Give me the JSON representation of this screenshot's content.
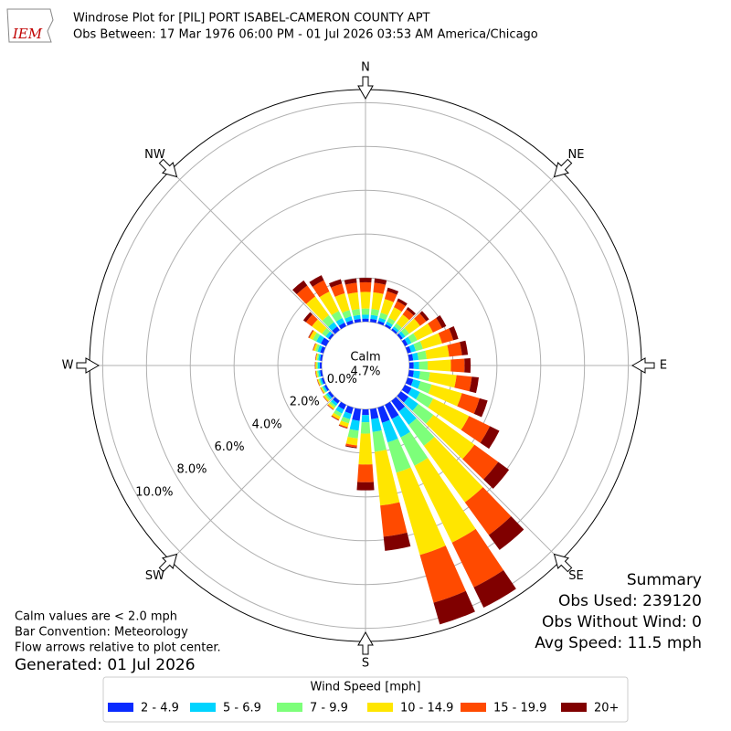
{
  "chart_data": {
    "type": "windrose",
    "title": "Windrose Plot for [PIL] PORT ISABEL-CAMERON COUNTY APT",
    "subtitle": "Obs Between: 17 Mar 1976 06:00 PM - 01 Jul 2026 03:53 AM America/Chicago",
    "logo_text": "IEM",
    "compass": [
      "N",
      "NE",
      "E",
      "SE",
      "S",
      "SW",
      "W",
      "NW"
    ],
    "directions": [
      0,
      10,
      20,
      30,
      40,
      50,
      60,
      70,
      80,
      90,
      100,
      110,
      120,
      130,
      140,
      150,
      160,
      170,
      180,
      190,
      200,
      210,
      220,
      230,
      240,
      250,
      260,
      270,
      280,
      290,
      300,
      310,
      320,
      330,
      340,
      350
    ],
    "rlim": [
      0,
      10.6
    ],
    "rticks": [
      {
        "value": 0,
        "label": "0.0%"
      },
      {
        "value": 2,
        "label": "2.0%"
      },
      {
        "value": 4,
        "label": "4.0%"
      },
      {
        "value": 6,
        "label": "6.0%"
      },
      {
        "value": 8,
        "label": "8.0%"
      },
      {
        "value": 10,
        "label": "10.0%"
      }
    ],
    "calm": {
      "label": "Calm",
      "value": 4.7,
      "value_label": "4.7%"
    },
    "legend_title": "Wind Speed [mph]",
    "series": [
      {
        "name": "2 - 4.9",
        "color": "#0a2bff",
        "values": [
          0.14,
          0.14,
          0.12,
          0.1,
          0.09,
          0.11,
          0.15,
          0.17,
          0.19,
          0.2,
          0.22,
          0.27,
          0.34,
          0.43,
          0.59,
          0.72,
          0.72,
          0.46,
          0.26,
          0.54,
          0.3,
          0.24,
          0.15,
          0.12,
          0.09,
          0.09,
          0.09,
          0.09,
          0.09,
          0.15,
          0.27,
          0.11,
          0.2,
          0.18,
          0.15,
          0.14
        ]
      },
      {
        "name": "5 - 6.9",
        "color": "#00d4ff",
        "values": [
          0.18,
          0.18,
          0.15,
          0.13,
          0.12,
          0.14,
          0.19,
          0.22,
          0.24,
          0.25,
          0.29,
          0.34,
          0.43,
          0.55,
          0.76,
          0.93,
          0.93,
          0.59,
          0.33,
          0.45,
          0.25,
          0.2,
          0.13,
          0.1,
          0.08,
          0.08,
          0.08,
          0.08,
          0.08,
          0.13,
          0.23,
          0.14,
          0.25,
          0.23,
          0.19,
          0.18
        ]
      },
      {
        "name": "7 - 9.9",
        "color": "#7dff7a",
        "values": [
          0.28,
          0.28,
          0.24,
          0.2,
          0.18,
          0.22,
          0.29,
          0.34,
          0.38,
          0.39,
          0.45,
          0.53,
          0.67,
          0.85,
          1.18,
          1.44,
          1.44,
          0.91,
          0.52,
          0.36,
          0.2,
          0.16,
          0.1,
          0.08,
          0.06,
          0.06,
          0.06,
          0.06,
          0.06,
          0.1,
          0.18,
          0.21,
          0.39,
          0.36,
          0.29,
          0.28
        ]
      },
      {
        "name": "10 - 14.9",
        "color": "#ffe600",
        "values": [
          0.76,
          0.76,
          0.65,
          0.53,
          0.49,
          0.61,
          0.8,
          0.91,
          1.03,
          1.06,
          1.22,
          1.44,
          1.82,
          2.32,
          3.19,
          3.91,
          3.91,
          2.47,
          1.41,
          0.32,
          0.18,
          0.14,
          0.09,
          0.07,
          0.05,
          0.05,
          0.05,
          0.05,
          0.05,
          0.09,
          0.16,
          0.57,
          1.06,
          0.99,
          0.8,
          0.76
        ]
      },
      {
        "name": "15 - 19.9",
        "color": "#ff4a00",
        "values": [
          0.44,
          0.44,
          0.37,
          0.31,
          0.29,
          0.35,
          0.46,
          0.53,
          0.59,
          0.62,
          0.7,
          0.84,
          1.06,
          1.34,
          1.85,
          2.27,
          2.27,
          1.43,
          0.81,
          0.09,
          0.05,
          0.04,
          0.03,
          0.02,
          0.02,
          0.02,
          0.02,
          0.02,
          0.02,
          0.03,
          0.05,
          0.33,
          0.62,
          0.57,
          0.46,
          0.44
        ]
      },
      {
        "name": "20+",
        "color": "#800000",
        "values": [
          0.2,
          0.2,
          0.17,
          0.14,
          0.13,
          0.16,
          0.21,
          0.24,
          0.27,
          0.28,
          0.32,
          0.38,
          0.48,
          0.61,
          0.84,
          1.03,
          1.03,
          0.65,
          0.37,
          0.04,
          0.02,
          0.02,
          0.01,
          0.01,
          0.01,
          0.01,
          0.01,
          0.01,
          0.01,
          0.01,
          0.02,
          0.15,
          0.28,
          0.26,
          0.21,
          0.2
        ]
      }
    ],
    "notes": [
      "Calm values are < 2.0 mph",
      "Bar Convention: Meteorology",
      "Flow arrows relative to plot center."
    ],
    "generated": "Generated: 01 Jul 2026",
    "summary": [
      "Summary",
      "Obs Used: 239120",
      "Obs Without Wind: 0",
      "Avg Speed: 11.5 mph"
    ]
  }
}
